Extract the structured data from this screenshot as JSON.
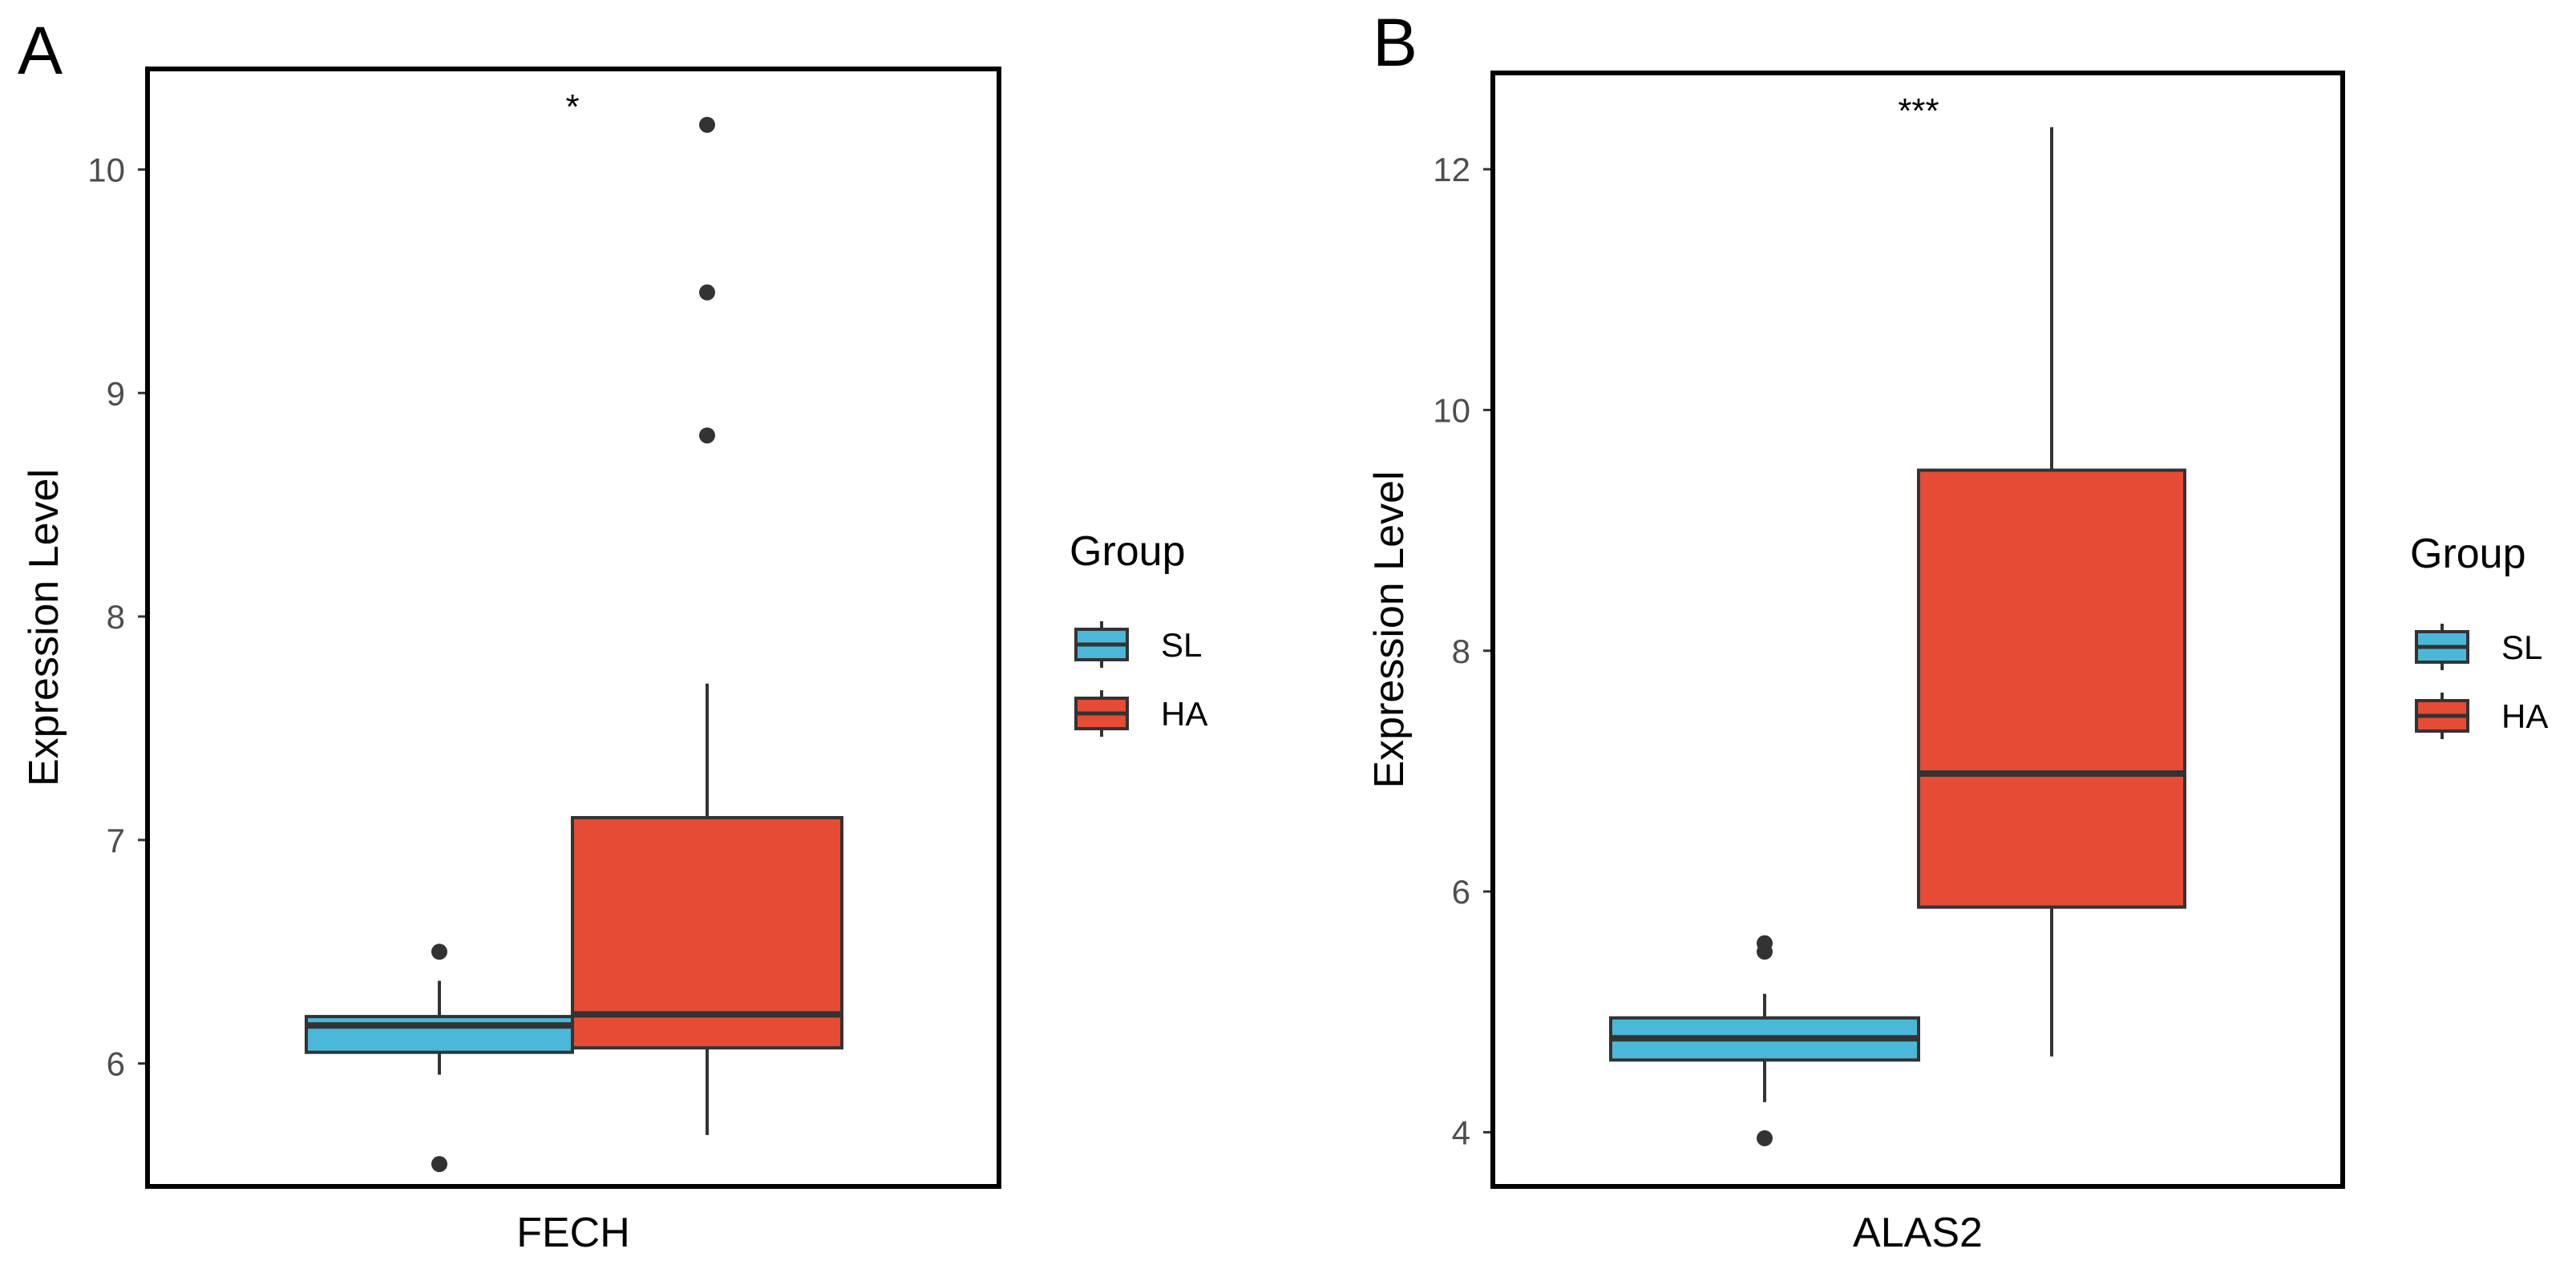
{
  "chart_data": [
    {
      "type": "boxplot",
      "panel_label": "A",
      "xlabel": "FECH",
      "ylabel": "Expression Level",
      "yticks": [
        6,
        7,
        8,
        9,
        10
      ],
      "ylim": [
        5.45,
        10.45
      ],
      "significance": "*",
      "legend": {
        "title": "Group",
        "placement": "right"
      },
      "series": [
        {
          "name": "SL",
          "color": "#4BB8DA",
          "q1": 6.05,
          "median": 6.17,
          "q3": 6.21,
          "whisker_low": 5.95,
          "whisker_high": 6.37,
          "outliers": [
            6.5,
            5.55
          ]
        },
        {
          "name": "HA",
          "color": "#E64B35",
          "q1": 6.07,
          "median": 6.22,
          "q3": 7.1,
          "whisker_low": 5.68,
          "whisker_high": 7.7,
          "outliers": [
            10.2,
            9.45,
            8.81
          ]
        }
      ]
    },
    {
      "type": "boxplot",
      "panel_label": "B",
      "xlabel": "ALAS2",
      "ylabel": "Expression Level",
      "yticks": [
        4,
        6,
        8,
        10,
        12
      ],
      "ylim": [
        3.55,
        12.8
      ],
      "significance": "***",
      "legend": {
        "title": "Group",
        "placement": "right"
      },
      "series": [
        {
          "name": "SL",
          "color": "#4BB8DA",
          "q1": 4.6,
          "median": 4.78,
          "q3": 4.95,
          "whisker_low": 4.25,
          "whisker_high": 5.15,
          "outliers": [
            5.57,
            5.5,
            3.95
          ]
        },
        {
          "name": "HA",
          "color": "#E64B35",
          "q1": 5.87,
          "median": 6.98,
          "q3": 9.5,
          "whisker_low": 4.63,
          "whisker_high": 12.35,
          "outliers": []
        }
      ]
    }
  ]
}
